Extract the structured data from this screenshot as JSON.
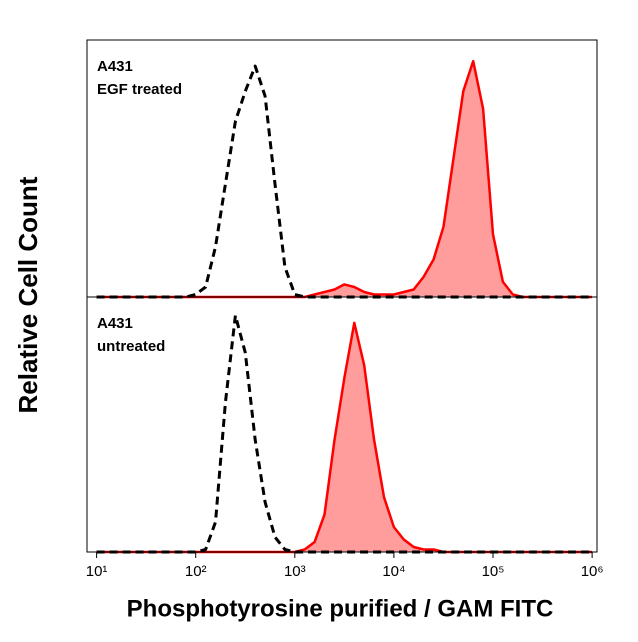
{
  "chart_data": [
    {
      "type": "line",
      "log_x": true,
      "annotations": [
        "A431",
        "EGF treated"
      ],
      "ylabel": "Relative Cell Count",
      "xlim": [
        8,
        1120000
      ],
      "ylim": [
        0,
        100
      ],
      "x": [
        10,
        79.43,
        100,
        125.9,
        158.5,
        199.5,
        251.2,
        316.2,
        398.1,
        501.2,
        631,
        794.3,
        1000,
        1259,
        1585,
        1995,
        2512,
        3162,
        3981,
        5012,
        6310,
        7943,
        10000,
        12589,
        15849,
        19953,
        25119,
        31623,
        39811,
        50119,
        63096,
        79433,
        100000,
        125893,
        158489,
        199526,
        1000000
      ],
      "series": [
        {
          "color": "#ff0000",
          "fill": "#ff9c9c",
          "dashed": false,
          "values": [
            0,
            0,
            0,
            0,
            0,
            0,
            0,
            0,
            0,
            0,
            0,
            0,
            0,
            0,
            1,
            2,
            3,
            5,
            4,
            2,
            1,
            1,
            1,
            2,
            3,
            8,
            15,
            28,
            55,
            82,
            94,
            75,
            25,
            6,
            1,
            0,
            0
          ]
        },
        {
          "color": "#000000",
          "dashed": true,
          "values": [
            0,
            0,
            1,
            4,
            20,
            45,
            70,
            82,
            92,
            80,
            45,
            12,
            1,
            0,
            0,
            0,
            0,
            0,
            0,
            0,
            0,
            0,
            0,
            0,
            0,
            0,
            0,
            0,
            0,
            0,
            0,
            0,
            0,
            0,
            0,
            0,
            0
          ]
        }
      ]
    },
    {
      "type": "line",
      "log_x": true,
      "annotations": [
        "A431",
        "untreated"
      ],
      "xlabel": "Phosphotyrosine purified  / GAM FITC",
      "xlim": [
        8,
        1120000
      ],
      "ylim": [
        0,
        100
      ],
      "xticks": [
        {
          "value": 10,
          "label": "10¹"
        },
        {
          "value": 100,
          "label": "10²"
        },
        {
          "value": 1000,
          "label": "10³"
        },
        {
          "value": 10000,
          "label": "10⁴"
        },
        {
          "value": 100000,
          "label": "10⁵"
        },
        {
          "value": 1000000,
          "label": "10⁶"
        }
      ],
      "x": [
        10,
        79.43,
        100,
        125.9,
        158.5,
        199.5,
        251.2,
        316.2,
        398.1,
        501.2,
        631,
        794.3,
        1000,
        1259,
        1585,
        1995,
        2512,
        3162,
        3981,
        5012,
        6310,
        7943,
        10000,
        12589,
        15849,
        19953,
        25119,
        31623,
        39811,
        50119,
        63096,
        79433,
        100000,
        125893,
        158489,
        199526,
        1000000
      ],
      "series": [
        {
          "color": "#ff0000",
          "fill": "#ff9c9c",
          "dashed": false,
          "values": [
            0,
            0,
            0,
            0,
            0,
            0,
            0,
            0,
            0,
            0,
            0,
            0,
            0,
            1,
            4,
            15,
            45,
            70,
            92,
            75,
            45,
            22,
            10,
            5,
            2,
            1,
            1,
            0,
            0,
            0,
            0,
            0,
            0,
            0,
            0,
            0,
            0
          ]
        },
        {
          "color": "#000000",
          "dashed": true,
          "values": [
            0,
            0,
            0,
            1,
            12,
            60,
            95,
            80,
            45,
            20,
            6,
            1,
            0,
            0,
            0,
            0,
            0,
            0,
            0,
            0,
            0,
            0,
            0,
            0,
            0,
            0,
            0,
            0,
            0,
            0,
            0,
            0,
            0,
            0,
            0,
            0,
            0
          ]
        }
      ]
    }
  ]
}
